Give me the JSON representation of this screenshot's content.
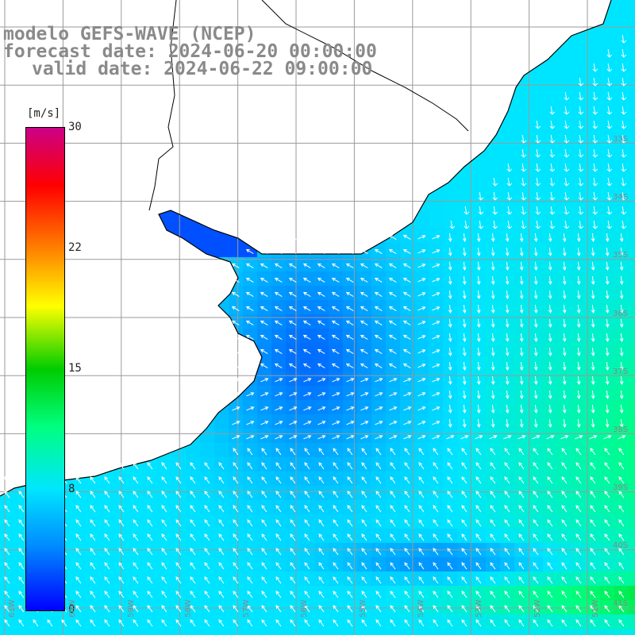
{
  "header": {
    "model_line": "modelo GEFS-WAVE (NCEP)",
    "forecast_line": "forecast date: 2024-06-20 00:00:00",
    "valid_line": "valid date: 2024-06-22 09:00:00"
  },
  "colorbar": {
    "unit": "[m/s]",
    "ticks": [
      "30",
      "22",
      "15",
      "8",
      "0"
    ],
    "tick_values": [
      30,
      22,
      15,
      8,
      0
    ],
    "range": [
      0,
      30
    ],
    "colors": [
      "#0000ff",
      "#0088ff",
      "#00e5ff",
      "#00ff80",
      "#00cc00",
      "#ffff00",
      "#ff8000",
      "#ff0000",
      "#cc0088"
    ]
  },
  "map": {
    "variable": "wind speed",
    "unit": "m/s",
    "land_color": "#ffffff",
    "grid_color": "#9a9a9a",
    "coast_color": "#000000",
    "arrow_color": "#ffffff",
    "lon_labels": [
      "61W",
      "60W",
      "59W",
      "58W",
      "57W",
      "56W",
      "55W",
      "54W",
      "53W",
      "52W",
      "51W"
    ],
    "lat_labels": [
      "33S",
      "34S",
      "35S",
      "36S",
      "37S",
      "38S",
      "39S",
      "40S",
      "41S"
    ]
  }
}
